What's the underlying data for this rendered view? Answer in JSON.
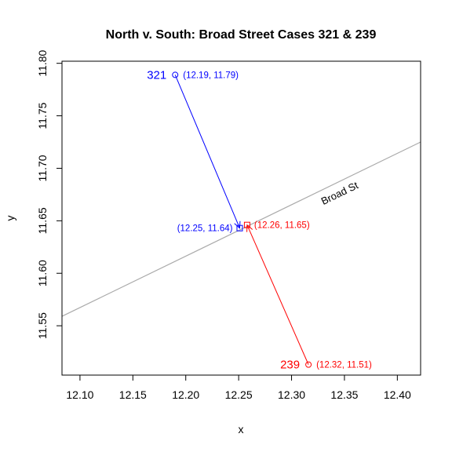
{
  "chart_data": {
    "type": "scatter",
    "title": "North v. South: Broad Street Cases 321 & 239",
    "xlabel": "x",
    "ylabel": "y",
    "xlim": [
      12.083,
      12.422
    ],
    "ylim": [
      11.503,
      11.802
    ],
    "xticks": [
      "12.10",
      "12.15",
      "12.20",
      "12.25",
      "12.30",
      "12.35",
      "12.40"
    ],
    "xtick_values": [
      12.1,
      12.15,
      12.2,
      12.25,
      12.3,
      12.35,
      12.4
    ],
    "yticks": [
      "11.55",
      "11.60",
      "11.65",
      "11.70",
      "11.75",
      "11.80"
    ],
    "ytick_values": [
      11.55,
      11.6,
      11.65,
      11.7,
      11.75,
      11.8
    ],
    "street": {
      "label": "Broad St",
      "color": "#aaaaaa",
      "line": [
        [
          12.083,
          11.559
        ],
        [
          12.422,
          11.725
        ]
      ],
      "label_at": [
        12.33,
        11.665
      ]
    },
    "cases": [
      {
        "case": "321",
        "color": "#0000ff",
        "case_point": [
          12.19,
          11.789
        ],
        "case_point_label": "(12.19, 11.79)",
        "street_point": [
          12.251,
          11.643
        ],
        "street_point_label": "(12.25, 11.64)"
      },
      {
        "case": "239",
        "color": "#ff0000",
        "case_point": [
          12.316,
          11.513
        ],
        "case_point_label": "(12.32, 11.51)",
        "street_point": [
          12.258,
          11.646
        ],
        "street_point_label": "(12.26, 11.65)"
      }
    ]
  }
}
